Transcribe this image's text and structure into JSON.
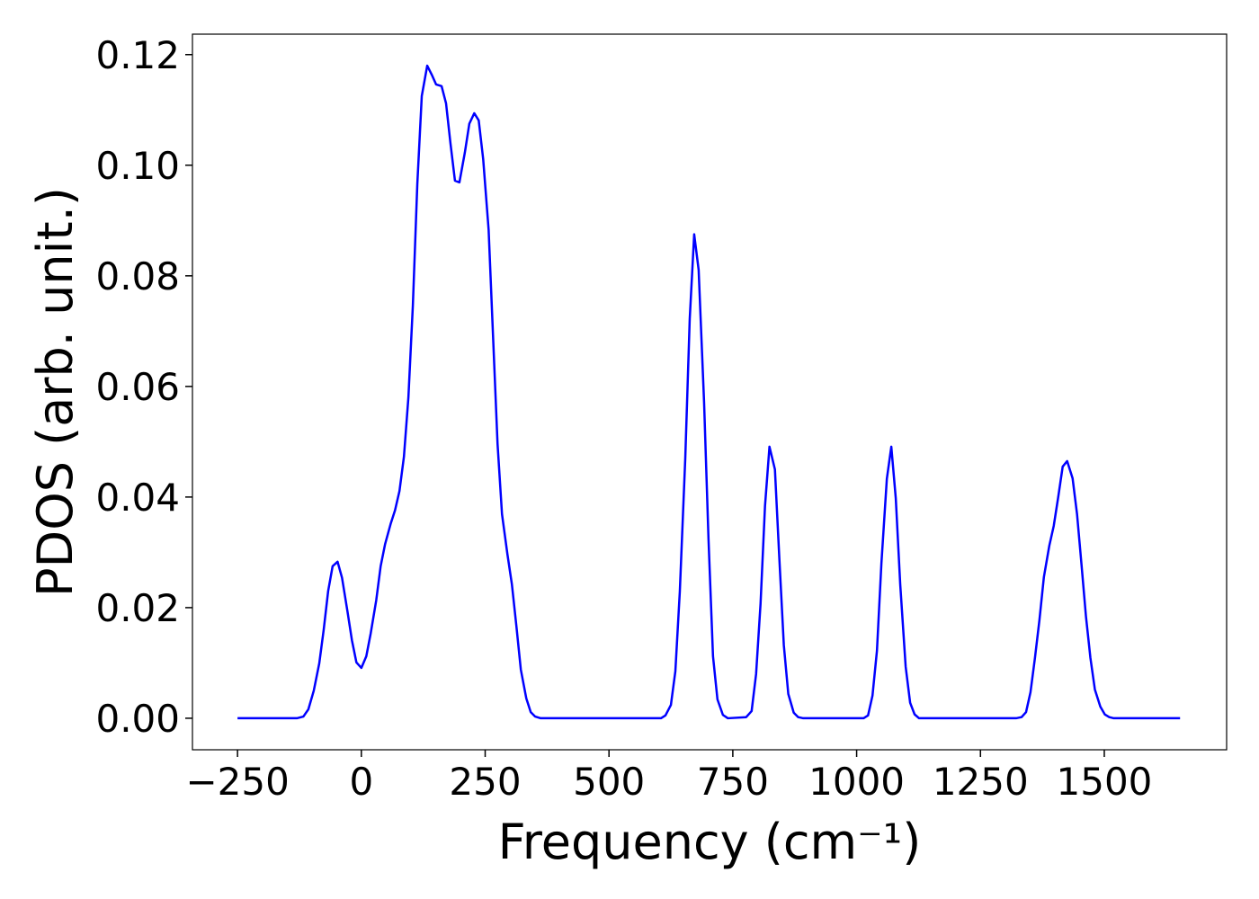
{
  "chart_data": {
    "type": "line",
    "xlabel": "Frequency (cm⁻¹)",
    "ylabel": "PDOS (arb. unit.)",
    "xlim": [
      -341,
      1747
    ],
    "ylim": [
      -0.0057,
      0.1237
    ],
    "xticks": [
      {
        "value": -250,
        "label": "−250"
      },
      0,
      250,
      500,
      750,
      1000,
      1250,
      1500
    ],
    "yticks": [
      {
        "value": 0,
        "label": "0.00"
      },
      {
        "value": 0.02,
        "label": "0.02"
      },
      {
        "value": 0.04,
        "label": "0.04"
      },
      {
        "value": 0.06,
        "label": "0.06"
      },
      {
        "value": 0.08,
        "label": "0.08"
      },
      {
        "value": 0.1,
        "label": "0.10"
      },
      {
        "value": 0.12,
        "label": "0.12"
      }
    ],
    "grid": false,
    "series": [
      {
        "color": "#0000ff",
        "x": [
          -250,
          -130,
          -117,
          -107,
          -96,
          -85,
          -76,
          -67,
          -58,
          -48,
          -39,
          -28,
          -19,
          -10,
          0,
          10,
          19,
          30,
          39,
          48,
          59,
          68,
          77,
          86,
          95,
          104,
          113,
          122,
          133,
          142,
          151,
          162,
          171,
          180,
          189,
          198,
          209,
          218,
          228,
          237,
          246,
          257,
          266,
          275,
          284,
          295,
          304,
          313,
          322,
          333,
          342,
          351,
          362,
          605,
          614,
          625,
          634,
          643,
          654,
          663,
          672,
          681,
          692,
          701,
          710,
          719,
          730,
          740,
          777,
          788,
          797,
          806,
          815,
          824,
          835,
          844,
          853,
          862,
          873,
          882,
          892,
          1014,
          1023,
          1032,
          1041,
          1050,
          1061,
          1070,
          1079,
          1088,
          1099,
          1108,
          1117,
          1126,
          1322,
          1333,
          1342,
          1351,
          1360,
          1369,
          1378,
          1389,
          1398,
          1407,
          1416,
          1425,
          1436,
          1445,
          1454,
          1463,
          1472,
          1481,
          1492,
          1501,
          1510,
          1519,
          1653
        ],
        "values": [
          0,
          0,
          0.0003,
          0.0016,
          0.005,
          0.0099,
          0.016,
          0.023,
          0.0275,
          0.0283,
          0.0254,
          0.0193,
          0.0141,
          0.0101,
          0.0091,
          0.0112,
          0.0154,
          0.0213,
          0.0275,
          0.0315,
          0.0351,
          0.0376,
          0.0411,
          0.0473,
          0.058,
          0.0746,
          0.0966,
          0.1125,
          0.118,
          0.1164,
          0.1146,
          0.1143,
          0.1112,
          0.1039,
          0.0972,
          0.0969,
          0.1023,
          0.1075,
          0.1094,
          0.1081,
          0.1011,
          0.0883,
          0.0689,
          0.0496,
          0.0369,
          0.0296,
          0.0242,
          0.0167,
          0.0088,
          0.0036,
          0.0011,
          0.0003,
          0,
          0,
          0.0005,
          0.0024,
          0.0085,
          0.0229,
          0.047,
          0.0722,
          0.0875,
          0.0811,
          0.0571,
          0.0322,
          0.0112,
          0.0034,
          0.0006,
          0,
          0.0002,
          0.0013,
          0.008,
          0.0207,
          0.0384,
          0.0491,
          0.045,
          0.0288,
          0.0132,
          0.0044,
          0.001,
          0.0002,
          0,
          0,
          0.0005,
          0.0041,
          0.0122,
          0.028,
          0.0433,
          0.0491,
          0.0398,
          0.0242,
          0.0093,
          0.0028,
          0.0007,
          0,
          0,
          0.0002,
          0.0011,
          0.0047,
          0.0109,
          0.0177,
          0.0255,
          0.0312,
          0.0348,
          0.04,
          0.0455,
          0.0465,
          0.0434,
          0.0369,
          0.0278,
          0.0184,
          0.0109,
          0.0052,
          0.0021,
          0.0007,
          0.0002,
          0,
          0
        ]
      }
    ]
  }
}
